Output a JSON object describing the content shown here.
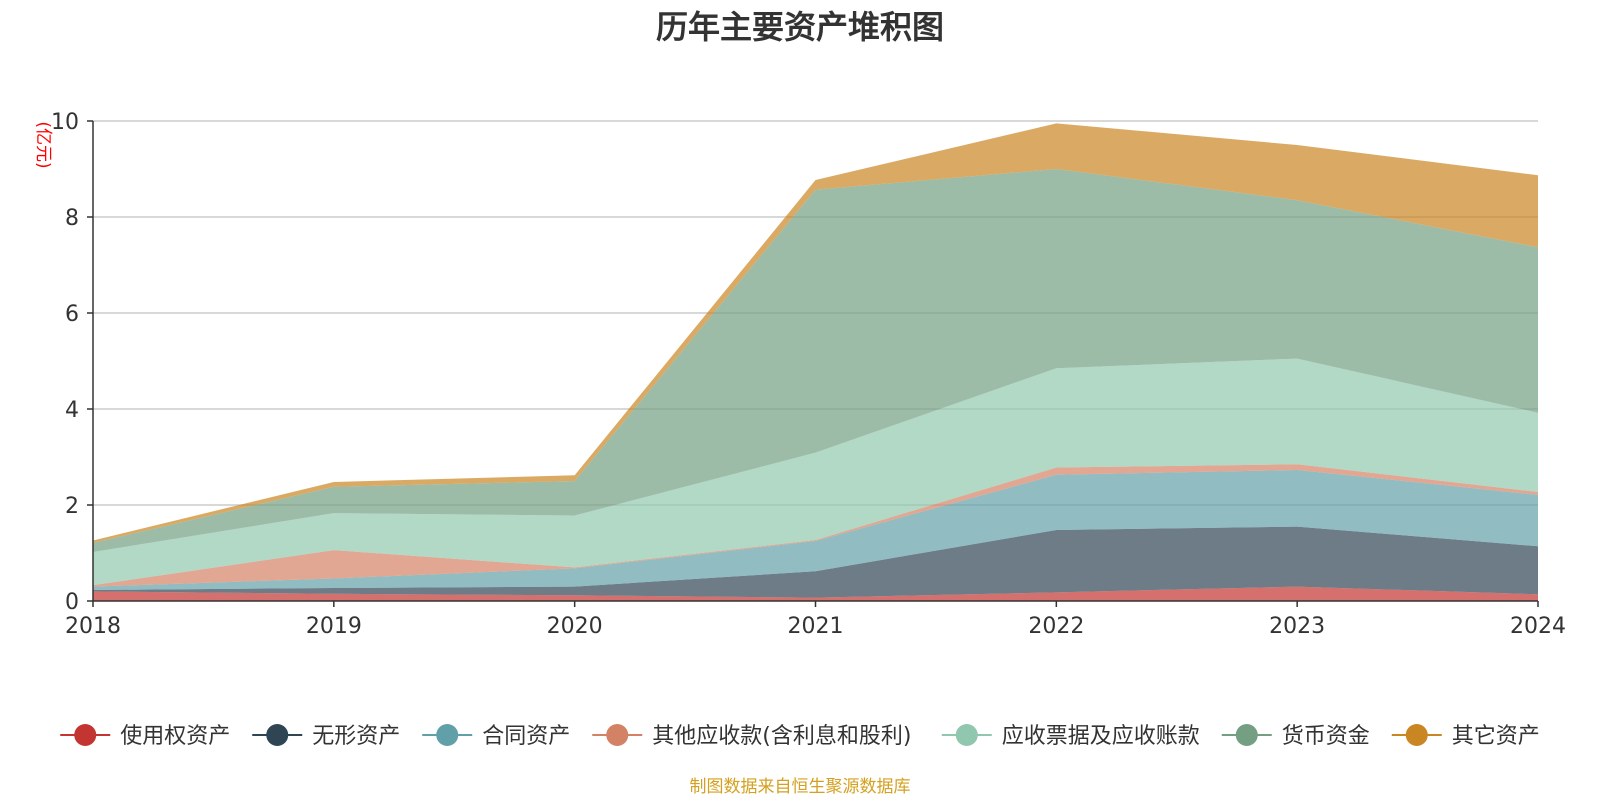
{
  "chart_data": {
    "type": "area",
    "stacked": true,
    "title": "历年主要资产堆积图",
    "unit_label": "(亿元)",
    "x": [
      "2018",
      "2019",
      "2020",
      "2021",
      "2022",
      "2023",
      "2024"
    ],
    "ylim": [
      0,
      10
    ],
    "yticks": [
      "0",
      "2",
      "4",
      "6",
      "8",
      "10"
    ],
    "grid": true,
    "legend_position": "bottom",
    "series": [
      {
        "name": "使用权资产",
        "color": "#c23531",
        "values": [
          0.2,
          0.15,
          0.12,
          0.07,
          0.18,
          0.3,
          0.14
        ]
      },
      {
        "name": "无形资产",
        "color": "#2f4554",
        "values": [
          0.03,
          0.12,
          0.18,
          0.55,
          1.3,
          1.25,
          1.0
        ]
      },
      {
        "name": "合同资产",
        "color": "#61a0a8",
        "values": [
          0.07,
          0.2,
          0.38,
          0.63,
          1.15,
          1.18,
          1.07
        ]
      },
      {
        "name": "其他应收款(含利息和股利)",
        "color": "#d48265",
        "values": [
          0.03,
          0.59,
          0.02,
          0.02,
          0.15,
          0.12,
          0.06
        ]
      },
      {
        "name": "应收票据及应收账款",
        "color": "#91c7ae",
        "values": [
          0.69,
          0.77,
          1.08,
          1.82,
          2.07,
          2.2,
          1.65
        ]
      },
      {
        "name": "货币资金",
        "color": "#749f83",
        "values": [
          0.19,
          0.55,
          0.72,
          5.48,
          4.15,
          3.3,
          3.45
        ]
      },
      {
        "name": "其它资产",
        "color": "#ca8622",
        "values": [
          0.05,
          0.1,
          0.12,
          0.2,
          0.95,
          1.15,
          1.5
        ]
      }
    ],
    "source_note": "制图数据来自恒生聚源数据库",
    "colors": {
      "unit": "#ff0000",
      "source": "#d4a020",
      "grid": "#cccccc",
      "axis": "#333333"
    }
  }
}
